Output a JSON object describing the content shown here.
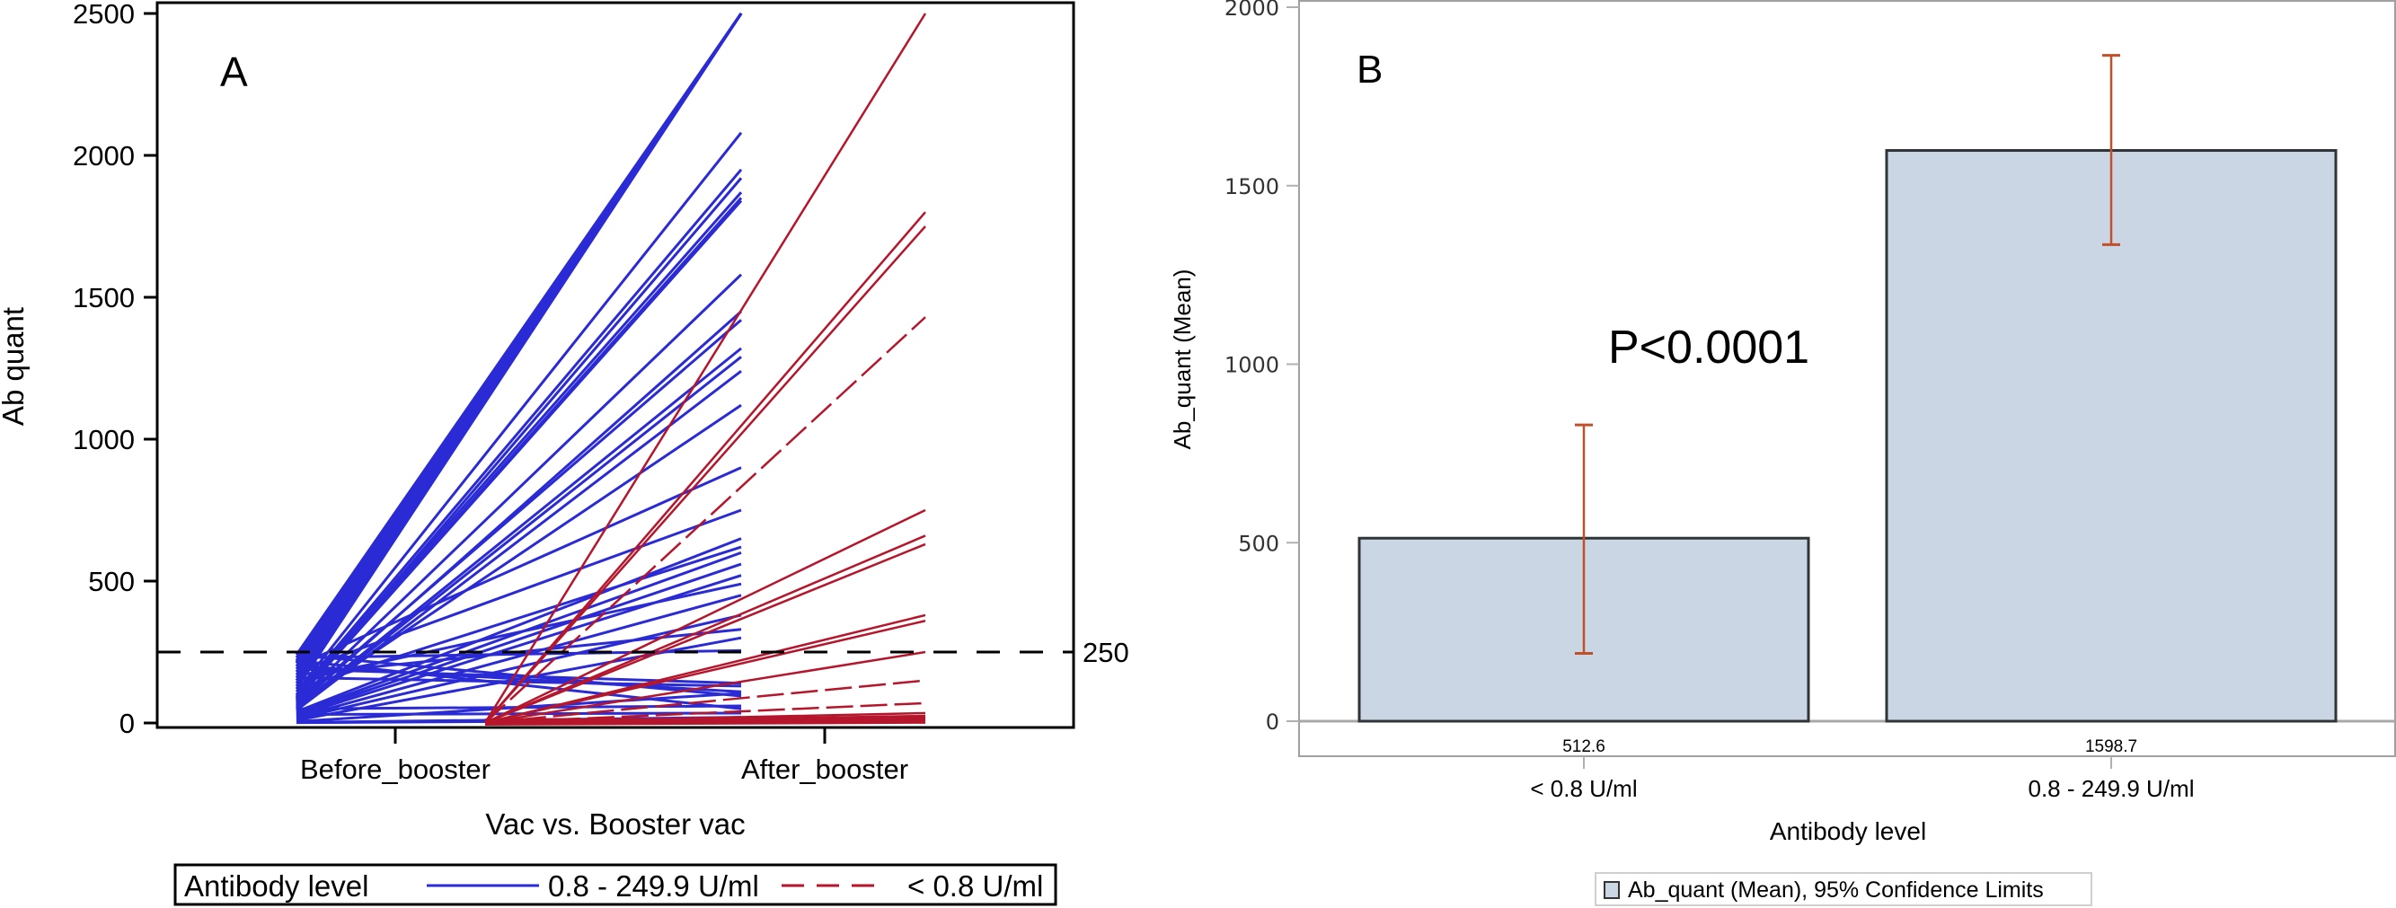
{
  "chart_data": [
    {
      "panel": "A",
      "type": "line",
      "panel_label": "A",
      "title": "",
      "xlabel": "Vac vs. Booster vac",
      "ylabel": "Ab quant",
      "ylim": [
        0,
        2500
      ],
      "yticks": [
        0,
        500,
        1000,
        1500,
        2000,
        2500
      ],
      "ytick_labels": [
        "0",
        "500",
        "1000",
        "1500",
        "2000",
        "2500"
      ],
      "categories": [
        "Before_booster",
        "After_booster"
      ],
      "reference_line": {
        "value": 250,
        "label": "250",
        "style": "dashed",
        "color": "#000000"
      },
      "legend": {
        "title": "Antibody level",
        "placement": "bottom",
        "entries": [
          {
            "label": "0.8 - 249.9 U/ml",
            "color": "#2b2bd6",
            "style": "solid"
          },
          {
            "label": "< 0.8 U/ml",
            "color": "#b5162b",
            "style": "dashed"
          }
        ]
      },
      "series": [
        {
          "name": "0.8 - 249.9 U/ml",
          "color": "#2b2bd6",
          "pairs": [
            [
              230,
              2500
            ],
            [
              220,
              2500
            ],
            [
              210,
              2500
            ],
            [
              200,
              2500
            ],
            [
              190,
              2500
            ],
            [
              180,
              2500
            ],
            [
              170,
              2500
            ],
            [
              160,
              2500
            ],
            [
              150,
              2500
            ],
            [
              140,
              2500
            ],
            [
              130,
              2500
            ],
            [
              120,
              2500
            ],
            [
              240,
              2500
            ],
            [
              215,
              2500
            ],
            [
              110,
              2080
            ],
            [
              100,
              1950
            ],
            [
              90,
              1920
            ],
            [
              95,
              1870
            ],
            [
              85,
              1850
            ],
            [
              80,
              1840
            ],
            [
              75,
              1580
            ],
            [
              60,
              1450
            ],
            [
              70,
              1420
            ],
            [
              55,
              1320
            ],
            [
              50,
              1290
            ],
            [
              45,
              1240
            ],
            [
              65,
              1120
            ],
            [
              200,
              900
            ],
            [
              180,
              750
            ],
            [
              40,
              650
            ],
            [
              120,
              620
            ],
            [
              35,
              600
            ],
            [
              30,
              560
            ],
            [
              25,
              520
            ],
            [
              150,
              490
            ],
            [
              20,
              450
            ],
            [
              15,
              380
            ],
            [
              170,
              330
            ],
            [
              10,
              300
            ],
            [
              230,
              255
            ],
            [
              190,
              140
            ],
            [
              160,
              130
            ],
            [
              200,
              110
            ],
            [
              5,
              105
            ],
            [
              240,
              95
            ],
            [
              50,
              60
            ],
            [
              220,
              50
            ],
            [
              30,
              35
            ],
            [
              2,
              20
            ],
            [
              1,
              10
            ]
          ]
        },
        {
          "name": "< 0.8 U/ml",
          "color": "#b5162b",
          "pairs": [
            [
              0.5,
              2500
            ],
            [
              0.5,
              1800
            ],
            [
              0.5,
              1750
            ],
            [
              0.5,
              1430
            ],
            [
              0.5,
              750
            ],
            [
              0.5,
              660
            ],
            [
              0.5,
              630
            ],
            [
              0.5,
              380
            ],
            [
              0.5,
              360
            ],
            [
              0.5,
              250
            ],
            [
              0.5,
              150
            ],
            [
              0.5,
              70
            ],
            [
              0.5,
              35
            ],
            [
              0.5,
              25
            ],
            [
              0.5,
              15
            ],
            [
              0.5,
              5
            ]
          ]
        }
      ]
    },
    {
      "panel": "B",
      "type": "bar",
      "panel_label": "B",
      "title": "",
      "xlabel": "Antibody level",
      "ylabel": "Ab_quant (Mean)",
      "ylim": [
        0,
        2000
      ],
      "yticks": [
        0,
        500,
        1000,
        1500,
        2000
      ],
      "ytick_labels": [
        "0",
        "500",
        "1000",
        "1500",
        "2000"
      ],
      "categories": [
        "< 0.8 U/ml",
        "0.8 - 249.9 U/ml"
      ],
      "values": [
        512.6,
        1598.7
      ],
      "value_labels": [
        "512.6",
        "1598.7"
      ],
      "ci_lower": [
        190,
        1335
      ],
      "ci_upper": [
        830,
        1865
      ],
      "bar_color": "#cbd6e5",
      "error_color": "#c0502a",
      "annotation": "P<0.0001",
      "legend": {
        "placement": "bottom",
        "entries": [
          {
            "label": "Ab_quant (Mean), 95% Confidence Limits",
            "color": "#cbd6e5"
          }
        ]
      }
    }
  ]
}
